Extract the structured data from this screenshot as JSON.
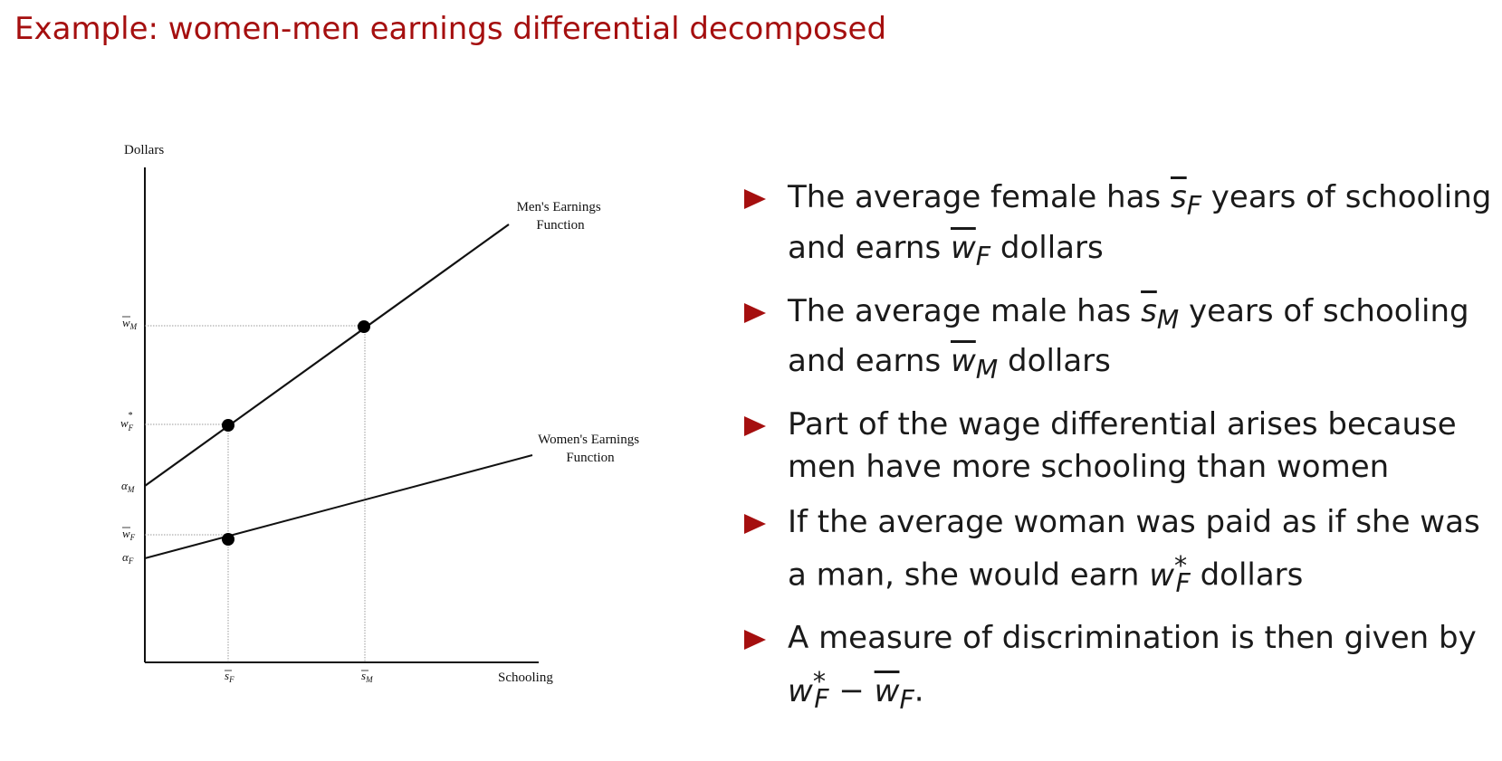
{
  "title": "Example: women-men earnings differential decomposed",
  "figure": {
    "y_axis_label": "Dollars",
    "x_axis_label": "Schooling",
    "mens_label_line1": "Men's Earnings",
    "mens_label_line2": "Function",
    "womens_label_line1": "Women's Earnings",
    "womens_label_line2": "Function",
    "ytick_wm_base": "w",
    "ytick_wm_sub": "M",
    "ytick_wfstar_base": "w",
    "ytick_wfstar_sup": "*",
    "ytick_wfstar_sub": "F",
    "ytick_alpham_base": "α",
    "ytick_alpham_sub": "M",
    "ytick_wf_base": "w",
    "ytick_wf_sub": "F",
    "ytick_alphaf_base": "α",
    "ytick_alphaf_sub": "F",
    "xtick_sf_base": "s",
    "xtick_sf_sub": "F",
    "xtick_sm_base": "s",
    "xtick_sm_sub": "M"
  },
  "bullets": {
    "b1_t1": "The average female has ",
    "b1_m1_base": "s",
    "b1_m1_sub": "F",
    "b1_t2": " years of schooling and earns ",
    "b1_m2_base": "w",
    "b1_m2_sub": "F",
    "b1_t3": " dollars",
    "b2_t1": "The average male has ",
    "b2_m1_base": "s",
    "b2_m1_sub": "M",
    "b2_t2": " years of schooling and earns ",
    "b2_m2_base": "w",
    "b2_m2_sub": "M",
    "b2_t3": " dollars",
    "b3_text": "Part of the wage differential arises because men have more schooling than women",
    "b4_t1": "If the average woman was paid as if she was a man, she would earn ",
    "b4_m_base": "w",
    "b4_m_sup": "*",
    "b4_m_sub": "F",
    "b4_t2": " dollars",
    "b5_t1": "A measure of discrimination is then given by ",
    "b5_m1_base": "w",
    "b5_m1_sup": "*",
    "b5_m1_sub": "F",
    "b5_minus": " − ",
    "b5_m2_base": "w",
    "b5_m2_sub": "F",
    "b5_t2": "."
  }
}
